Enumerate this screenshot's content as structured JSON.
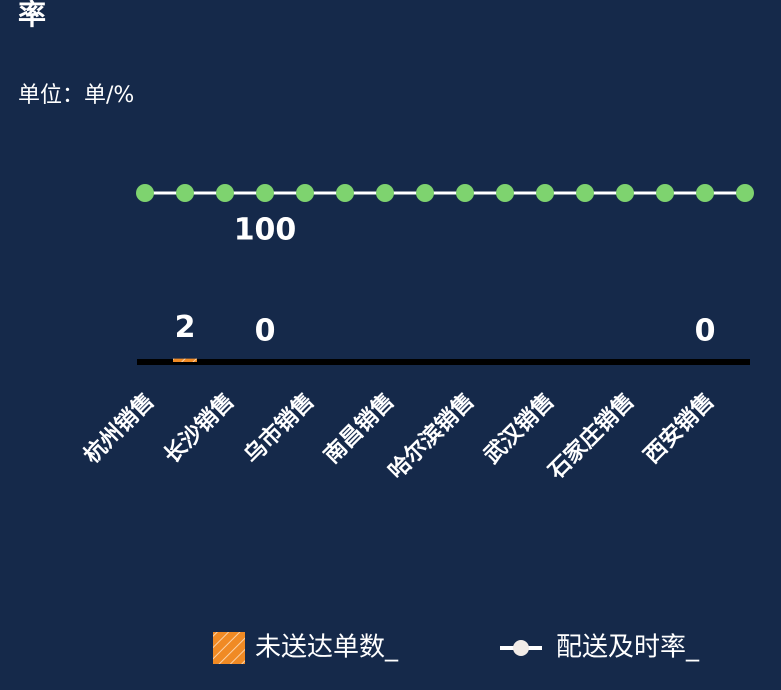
{
  "chart_data": {
    "type": "bar-line",
    "title": "率",
    "subtitle": "单位：单/%",
    "categories": [
      "杭州销售",
      null,
      "长沙销售",
      null,
      "乌市销售",
      null,
      "南昌销售",
      null,
      "哈尔滨销售",
      null,
      "武汉销售",
      null,
      "石家庄销售",
      null,
      "西安销售",
      null
    ],
    "series": [
      {
        "name": "未送达单数_",
        "type": "bar",
        "color": "#f08a24",
        "values": [
          null,
          2,
          null,
          0,
          null,
          null,
          null,
          null,
          null,
          null,
          null,
          null,
          null,
          null,
          0,
          null
        ]
      },
      {
        "name": "配送及时率_",
        "type": "line",
        "color": "#ffffff",
        "marker_color": "#7ed36f",
        "values": [
          100,
          100,
          100,
          100,
          100,
          100,
          100,
          100,
          100,
          100,
          100,
          100,
          100,
          100,
          100,
          100
        ],
        "value_labels": [
          null,
          null,
          null,
          "100",
          null,
          null,
          null,
          null,
          null,
          null,
          null,
          null,
          null,
          null,
          null,
          null
        ]
      }
    ],
    "ylim": [
      0,
      100
    ]
  }
}
